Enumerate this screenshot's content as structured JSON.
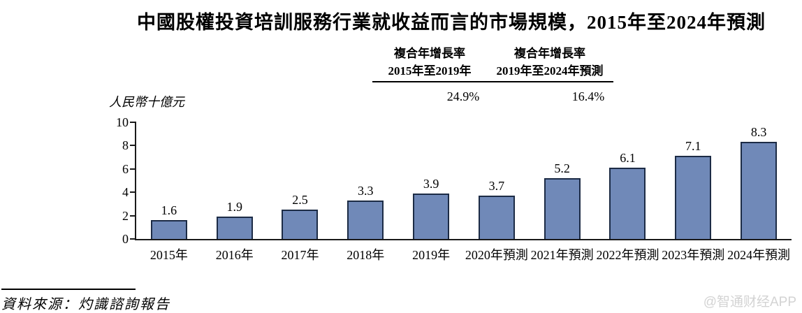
{
  "title": "中國股權投資培訓服務行業就收益而言的市場規模，2015年至2024年預測",
  "cagr": {
    "col1": {
      "line1": "複合年增長率",
      "line2": "2015年至2019年",
      "value": "24.9%"
    },
    "col2": {
      "line1": "複合年增長率",
      "line2": "2019年至2024年預測",
      "value": "16.4%"
    }
  },
  "y_axis_title": "人民幣十億元",
  "chart_data": {
    "type": "bar",
    "categories": [
      "2015年",
      "2016年",
      "2017年",
      "2018年",
      "2019年",
      "2020年預測",
      "2021年預測",
      "2022年預測",
      "2023年預測",
      "2024年預測"
    ],
    "values": [
      1.6,
      1.9,
      2.5,
      3.3,
      3.9,
      3.7,
      5.2,
      6.1,
      7.1,
      8.3
    ],
    "title": "中國股權投資培訓服務行業就收益而言的市場規模，2015年至2024年預測",
    "xlabel": "",
    "ylabel": "人民幣十億元",
    "ylim": [
      0,
      10
    ],
    "yticks": [
      0,
      2,
      4,
      6,
      8,
      10
    ],
    "grid": false,
    "legend_position": "none",
    "bar_color": "#7089b8",
    "bar_border_color": "#1c2b45"
  },
  "source": "資料來源：灼識諮詢報告",
  "watermark": "@智通财经APP"
}
